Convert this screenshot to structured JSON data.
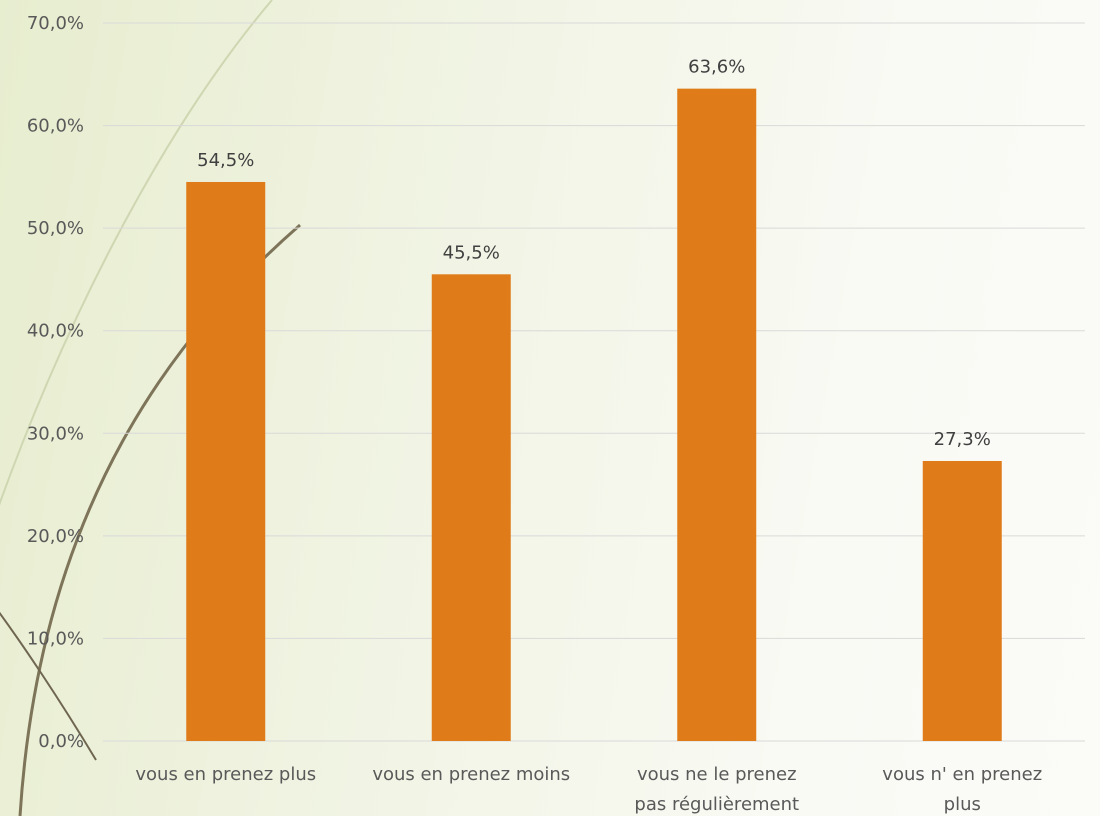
{
  "chart_data": {
    "type": "bar",
    "categories": [
      [
        "vous en prenez plus"
      ],
      [
        "vous en prenez moins"
      ],
      [
        "vous ne le prenez",
        "pas régulièrement"
      ],
      [
        "vous n' en prenez",
        "plus"
      ]
    ],
    "values": [
      54.5,
      45.5,
      63.6,
      27.3
    ],
    "data_labels": [
      "54,5%",
      "45,5%",
      "63,6%",
      "27,3%"
    ],
    "y_ticks": [
      "0,0%",
      "10,0%",
      "20,0%",
      "30,0%",
      "40,0%",
      "50,0%",
      "60,0%",
      "70,0%"
    ],
    "ylim": [
      0,
      70
    ],
    "grid": true,
    "legend": "none",
    "title": "",
    "xlabel": "",
    "ylabel": "",
    "colors": {
      "bar": "#df7c19",
      "grid": "#d9d9d9",
      "text": "#595959"
    }
  }
}
